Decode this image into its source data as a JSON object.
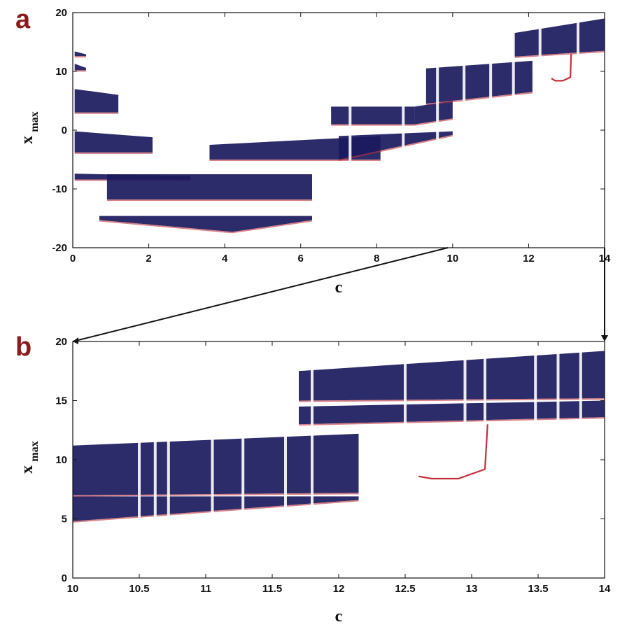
{
  "figure": {
    "colors": {
      "dense": "#1b1a5e",
      "sparse": "#c0303a",
      "axis": "#111111",
      "panel_letter": "#8b1a1a"
    }
  },
  "chart_data": [
    {
      "type": "scatter",
      "panel": "a",
      "title": "",
      "xlabel": "c",
      "ylabel_main": "x",
      "ylabel_sub": "max",
      "xlim": [
        0,
        14
      ],
      "ylim": [
        -20,
        20
      ],
      "xticks": [
        0,
        2,
        4,
        6,
        8,
        10,
        12,
        14
      ],
      "yticks": [
        -20,
        -10,
        0,
        10,
        20
      ],
      "bands": [
        {
          "x": [
            0.05,
            0.35
          ],
          "lo": [
            12.6,
            12.6
          ],
          "hi": [
            13.4,
            12.9
          ]
        },
        {
          "x": [
            0.05,
            0.35
          ],
          "lo": [
            10.2,
            10.2
          ],
          "hi": [
            11.3,
            10.6
          ]
        },
        {
          "x": [
            0.05,
            1.2
          ],
          "lo": [
            3.0,
            3.0
          ],
          "hi": [
            7.0,
            6.0
          ]
        },
        {
          "x": [
            0.05,
            2.1
          ],
          "lo": [
            -3.8,
            -3.8
          ],
          "hi": [
            -0.2,
            -1.2
          ]
        },
        {
          "x": [
            0.05,
            3.1
          ],
          "lo": [
            -8.4,
            -8.4
          ],
          "hi": [
            -7.4,
            -7.8
          ]
        },
        {
          "x": [
            0.9,
            6.3
          ],
          "lo": [
            -11.8,
            -11.8
          ],
          "hi": [
            -7.5,
            -7.5
          ]
        },
        {
          "x": [
            0.7,
            4.2
          ],
          "lo": [
            -15.3,
            -17.3
          ],
          "hi": [
            -14.6,
            -14.6
          ]
        },
        {
          "x": [
            4.2,
            6.3
          ],
          "lo": [
            -17.3,
            -15.3
          ],
          "hi": [
            -14.6,
            -14.6
          ]
        },
        {
          "x": [
            3.6,
            8.1
          ],
          "lo": [
            -5.0,
            -5.0
          ],
          "hi": [
            -2.5,
            -1.0
          ]
        },
        {
          "x": [
            6.8,
            9.0
          ],
          "lo": [
            1.0,
            1.0
          ],
          "hi": [
            4.0,
            4.0
          ]
        },
        {
          "x": [
            9.0,
            10.0
          ],
          "lo": [
            1.0,
            2.0
          ],
          "hi": [
            4.0,
            5.0
          ]
        },
        {
          "x": [
            7.0,
            10.0
          ],
          "lo": [
            -5.0,
            -0.8
          ],
          "hi": [
            -1.0,
            -0.2
          ]
        },
        {
          "x": [
            9.3,
            12.1
          ],
          "lo": [
            4.5,
            6.5
          ],
          "hi": [
            10.5,
            11.8
          ]
        },
        {
          "x": [
            11.6,
            14.0
          ],
          "lo": [
            12.5,
            13.5
          ],
          "hi": [
            16.5,
            19.0
          ]
        }
      ],
      "gaps": [
        7.3,
        8.7,
        9.6,
        10.3,
        11.0,
        11.6,
        12.3,
        13.3
      ],
      "curve": {
        "x": [
          12.6,
          12.7,
          12.9,
          13.1,
          13.12
        ],
        "y": [
          8.8,
          8.4,
          8.4,
          9.0,
          13.0
        ]
      },
      "zoom_box": {
        "x": [
          10,
          14
        ],
        "ylim": [
          0,
          20
        ]
      }
    },
    {
      "type": "scatter",
      "panel": "b",
      "title": "",
      "xlabel": "c",
      "ylabel_main": "x",
      "ylabel_sub": "max",
      "xlim": [
        10,
        14
      ],
      "ylim": [
        0,
        20
      ],
      "xticks": [
        "10",
        "10.5",
        "11",
        "11.5",
        "12",
        "12.5",
        "13",
        "13.5",
        "14"
      ],
      "yticks": [
        0,
        5,
        10,
        15,
        20
      ],
      "bands": [
        {
          "x": [
            10.0,
            12.15
          ],
          "lo": [
            4.8,
            6.6
          ],
          "hi": [
            6.9,
            6.9
          ]
        },
        {
          "x": [
            10.0,
            12.15
          ],
          "lo": [
            7.0,
            7.2
          ],
          "hi": [
            11.2,
            12.2
          ]
        },
        {
          "x": [
            11.7,
            14.0
          ],
          "lo": [
            13.0,
            13.6
          ],
          "hi": [
            14.5,
            15.0
          ]
        },
        {
          "x": [
            11.7,
            14.0
          ],
          "lo": [
            15.0,
            15.2
          ],
          "hi": [
            17.5,
            19.2
          ]
        }
      ],
      "gaps": [
        10.5,
        10.62,
        10.72,
        11.05,
        11.28,
        11.6,
        11.8,
        12.5,
        12.95,
        13.1,
        13.48,
        13.65,
        13.82
      ],
      "curve": {
        "x": [
          12.6,
          12.7,
          12.9,
          13.1,
          13.12
        ],
        "y": [
          8.6,
          8.4,
          8.4,
          9.2,
          13.0
        ]
      }
    }
  ]
}
